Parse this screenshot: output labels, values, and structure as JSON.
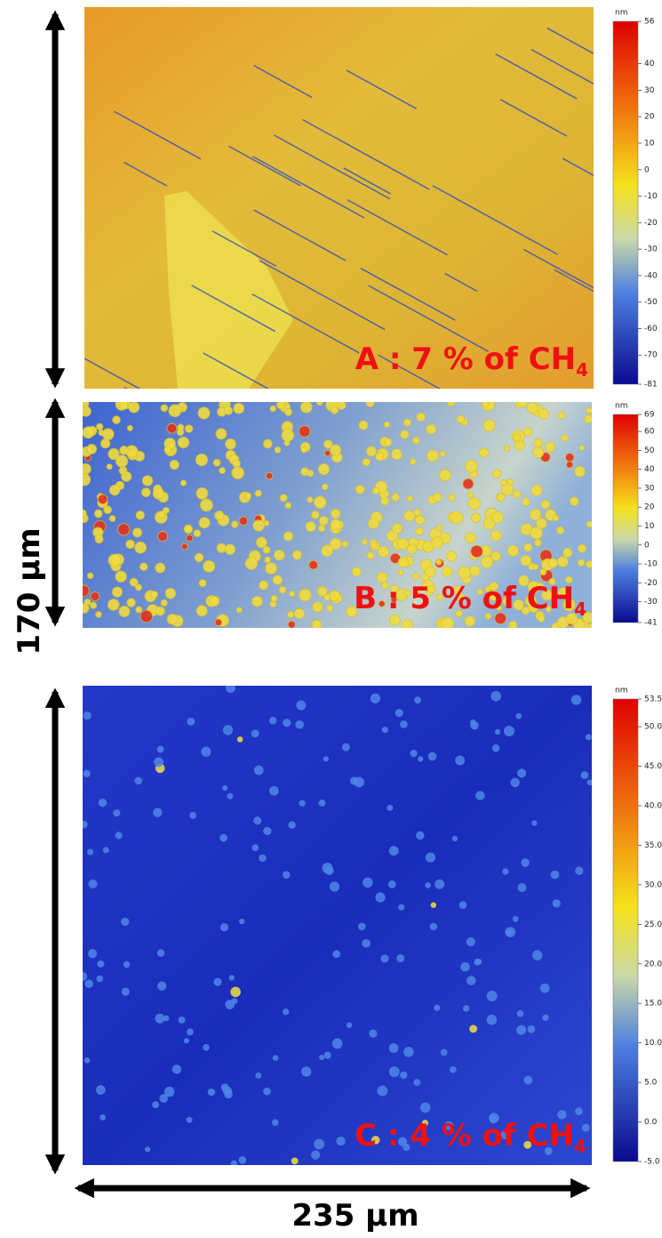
{
  "scale_bars": {
    "vertical": "170 µm",
    "horizontal": "235 µm"
  },
  "panels": [
    {
      "label": "A : 7 % of CH",
      "subscript": "4",
      "unit": "nm",
      "colorbar_ticks": [
        "56",
        "40",
        "30",
        "20",
        "10",
        "0",
        "-10",
        "-20",
        "-30",
        "-40",
        "-50",
        "-60",
        "-70",
        "-81"
      ]
    },
    {
      "label": "B : 5 % of CH",
      "subscript": "4",
      "unit": "nm",
      "colorbar_ticks": [
        "69",
        "60",
        "50",
        "40",
        "30",
        "20",
        "10",
        "0",
        "-10",
        "-20",
        "-30",
        "-41"
      ]
    },
    {
      "label": "C : 4 % of CH",
      "subscript": "4",
      "unit": "nm",
      "colorbar_ticks": [
        "53.5",
        "50.0",
        "45.0",
        "40.0",
        "35.0",
        "30.0",
        "25.0",
        "20.0",
        "15.0",
        "10.0",
        "5.0",
        "0.0",
        "-5.0"
      ]
    }
  ]
}
